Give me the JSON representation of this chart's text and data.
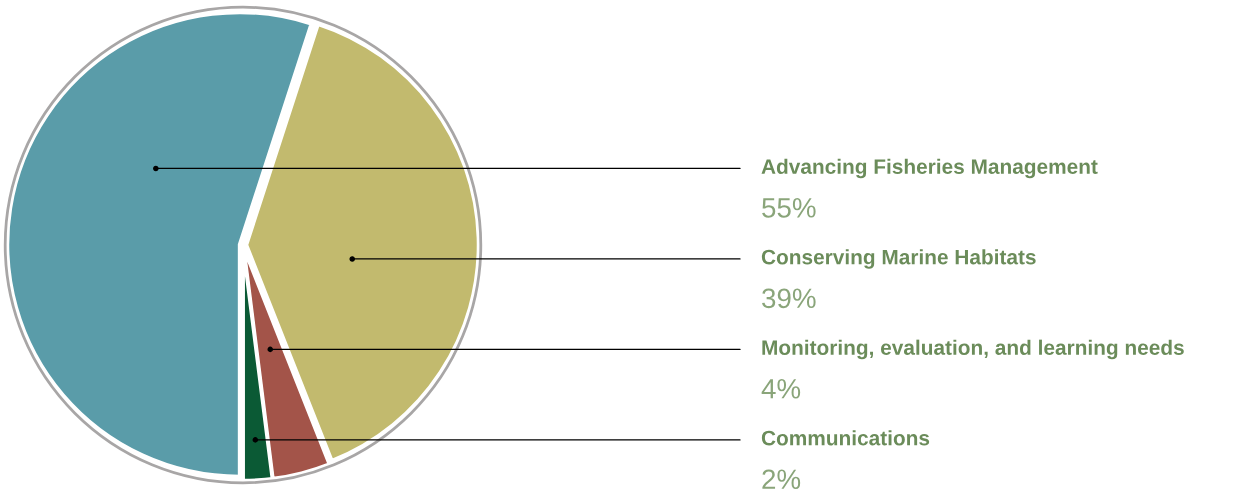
{
  "chart_data": {
    "type": "pie",
    "categories": [
      "Advancing Fisheries Management",
      "Conserving Marine Habitats",
      "Monitoring, evaluation, and learning needs",
      "Communications"
    ],
    "values": [
      55,
      39,
      4,
      2
    ],
    "colors": [
      "#5a9ca9",
      "#c2ba6e",
      "#a35449",
      "#0b5a35"
    ],
    "value_labels": [
      "55%",
      "39%",
      "4%",
      "2%"
    ]
  }
}
